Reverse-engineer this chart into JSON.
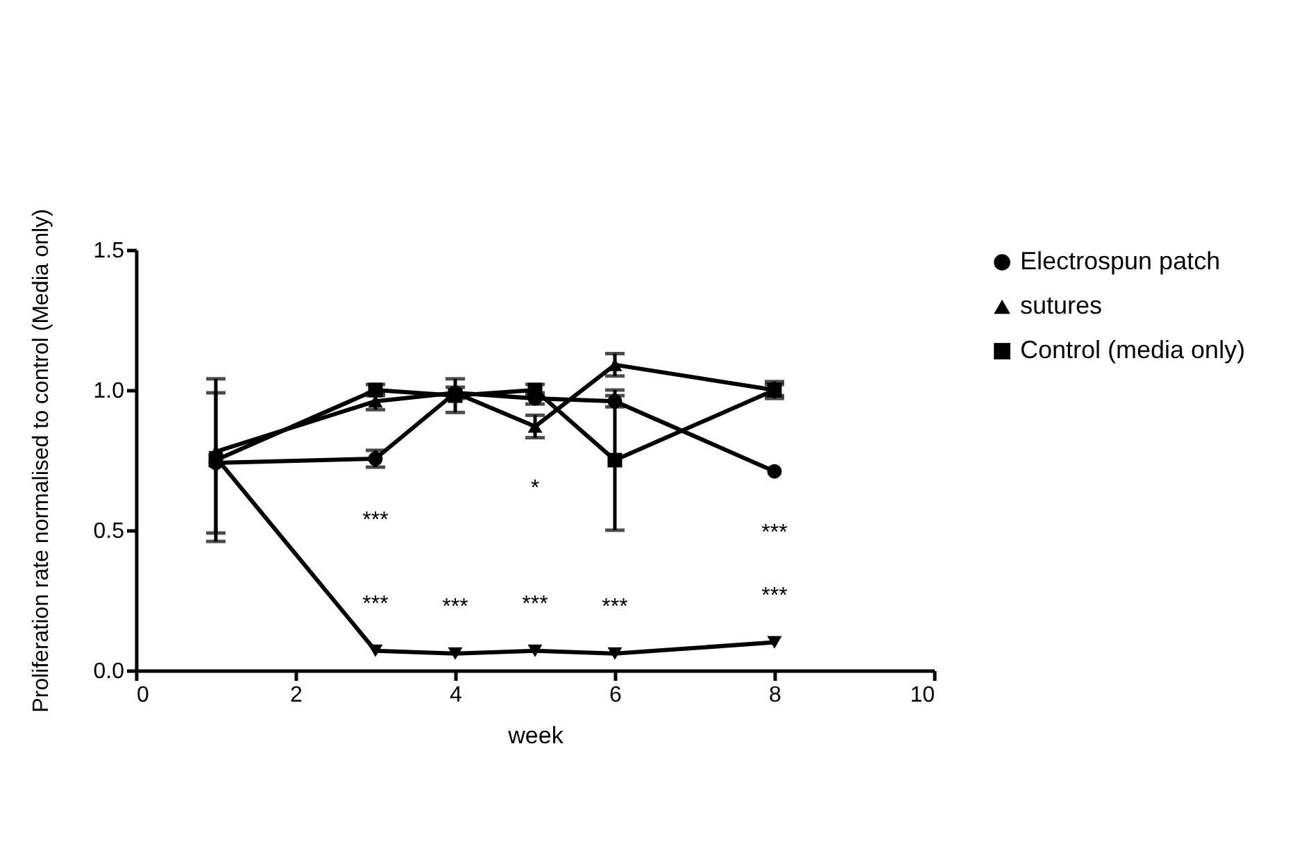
{
  "chart_data": {
    "type": "line",
    "xlabel": "week",
    "ylabel": "Proliferation rate normalised to control (Media only)",
    "x": [
      1,
      3,
      4,
      5,
      6,
      8
    ],
    "xlim": [
      0,
      10
    ],
    "xticks": [
      0,
      2,
      4,
      6,
      8,
      10
    ],
    "ylim": [
      0,
      1.5
    ],
    "yticks": [
      {
        "value": 0,
        "label": "0.0"
      },
      {
        "value": 0.5,
        "label": "0.5"
      },
      {
        "value": 1,
        "label": "1.0"
      },
      {
        "value": 1.5,
        "label": "1.5"
      }
    ],
    "grid": false,
    "legend": "top right",
    "line_style": "solid",
    "series": [
      {
        "name": "Electrospun patch",
        "color": "#000000",
        "marker": "circle",
        "values": [
          0.74,
          0.755,
          0.99,
          0.97,
          0.96,
          0.71
        ],
        "errors": [
          0.25,
          0.03,
          null,
          0.02,
          0.02,
          null
        ]
      },
      {
        "name": "sutures",
        "color": "#000000",
        "marker": "triangle",
        "values": [
          0.78,
          0.96,
          0.99,
          0.87,
          1.09,
          1.0
        ],
        "errors": [
          null,
          0.03,
          0.02,
          0.04,
          0.04,
          0.02
        ]
      },
      {
        "color": "#000000",
        "marker": "triangle-down",
        "values": [
          0.76,
          0.07,
          0.06,
          0.07,
          0.06,
          0.1
        ]
      },
      {
        "name": "Control (media only)",
        "color": "#000000",
        "marker": "square",
        "values": [
          0.75,
          1.0,
          0.98,
          1.0,
          0.75,
          1.0
        ],
        "errors": [
          0.29,
          0.02,
          0.06,
          0.02,
          0.25,
          0.03
        ]
      }
    ],
    "annotations": [
      {
        "text": "***",
        "x": 3,
        "y": 0.755
      },
      {
        "text": "*",
        "x": 5,
        "y": 0.87
      },
      {
        "text": "***",
        "x": 8,
        "y": 0.71
      },
      {
        "text": "***",
        "x": 3,
        "y": 0.07
      },
      {
        "text": "***",
        "x": 4,
        "y": 0.06
      },
      {
        "text": "***",
        "x": 5,
        "y": 0.07
      },
      {
        "text": "***",
        "x": 6,
        "y": 0.06
      },
      {
        "text": "***",
        "x": 8,
        "y": 0.1
      }
    ]
  }
}
